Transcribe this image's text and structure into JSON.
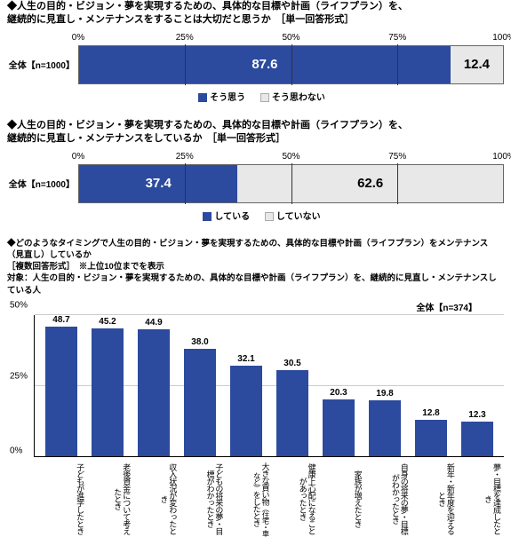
{
  "colors": {
    "primary": "#2c4a9e",
    "secondary": "#e8e8e8",
    "grid": "#cccccc",
    "text": "#000000",
    "bg": "#ffffff"
  },
  "chart1": {
    "type": "stacked-bar-horizontal",
    "title": "◆人生の目的・ビジョン・夢を実現するための、具体的な目標や計画（ライフプラン）を、\n継続的に見直し・メンテナンスをすることは大切だと思うか　［単一回答形式］",
    "row_label": "全体【n=1000】",
    "axis_ticks": [
      "0%",
      "25%",
      "50%",
      "75%",
      "100%"
    ],
    "segments": [
      {
        "label": "そう思う",
        "value": 87.6,
        "color": "#2c4a9e",
        "text_color": "#ffffff"
      },
      {
        "label": "そう思わない",
        "value": 12.4,
        "color": "#e8e8e8",
        "text_color": "#000000"
      }
    ]
  },
  "chart2": {
    "type": "stacked-bar-horizontal",
    "title": "◆人生の目的・ビジョン・夢を実現するための、具体的な目標や計画（ライフプラン）を、\n継続的に見直し・メンテナンスをしているか　［単一回答形式］",
    "row_label": "全体【n=1000】",
    "axis_ticks": [
      "0%",
      "25%",
      "50%",
      "75%",
      "100%"
    ],
    "segments": [
      {
        "label": "している",
        "value": 37.4,
        "color": "#2c4a9e",
        "text_color": "#ffffff"
      },
      {
        "label": "していない",
        "value": 62.6,
        "color": "#e8e8e8",
        "text_color": "#000000"
      }
    ]
  },
  "chart3": {
    "type": "bar",
    "title1": "◆どのようなタイミングで人生の目的・ビジョン・夢を実現するための、具体的な目標や計画（ライフプラン）をメンテナンス（見直し）しているか",
    "title2": "［複数回答形式］　※上位10位までを表示",
    "title3": "対象：人生の目的・ビジョン・夢を実現するための、具体的な目標や計画（ライフプラン）を、継続的に見直し・メンテナンスしている人",
    "legend": "全体【n=374】",
    "ylim": [
      0,
      50
    ],
    "ytick_step": 25,
    "yticks": [
      "0%",
      "25%",
      "50%"
    ],
    "bar_color": "#2c4a9e",
    "bars": [
      {
        "label": "子どもが進学したとき",
        "value": 48.7
      },
      {
        "label": "老後資金について考えたとき",
        "value": 45.2
      },
      {
        "label": "収入状況が変わったとき",
        "value": 44.9
      },
      {
        "label": "子どもの将来の夢・目標がわかったとき",
        "value": 38.0
      },
      {
        "label": "大きな買い物",
        "note": "（住宅・車など）",
        "label2": "をしたとき",
        "value": 32.1
      },
      {
        "label": "健康上心配になることがあったとき",
        "value": 30.5
      },
      {
        "label": "家族が増えたとき",
        "value": 20.3
      },
      {
        "label": "自身の将来の夢・目標がわかったとき",
        "value": 19.8
      },
      {
        "label": "新年・新年度を迎えるとき",
        "value": 12.8
      },
      {
        "label": "夢・目標を達成したとき",
        "value": 12.3
      }
    ]
  }
}
